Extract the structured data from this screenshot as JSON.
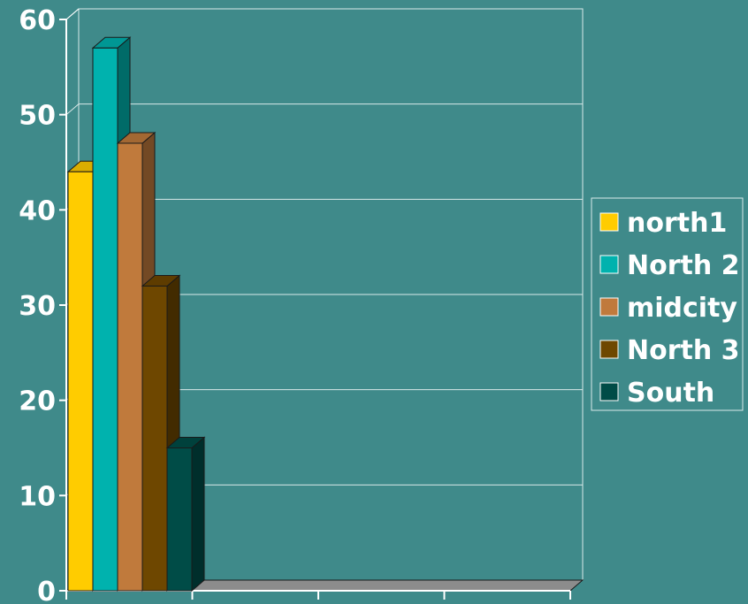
{
  "colors": {
    "background": "#3f8a8a",
    "grid": "#d9e9e9",
    "axis": "#ffffff",
    "floor": "#8c8c8c",
    "outline": "#1a1a1a"
  },
  "chart_data": {
    "type": "bar",
    "title": "",
    "xlabel": "",
    "ylabel": "",
    "ylim": [
      0,
      60
    ],
    "yticks": [
      0,
      10,
      20,
      30,
      40,
      50,
      60
    ],
    "grid": true,
    "legend_position": "right",
    "three_d": true,
    "categories": [
      ""
    ],
    "series": [
      {
        "name": "north1",
        "values": [
          44
        ],
        "color": "#ffcc00"
      },
      {
        "name": "North 2",
        "values": [
          57
        ],
        "color": "#00b2ae"
      },
      {
        "name": "midcity",
        "values": [
          47
        ],
        "color": "#c07a3c"
      },
      {
        "name": "North 3",
        "values": [
          32
        ],
        "color": "#6e4700"
      },
      {
        "name": "South",
        "values": [
          15
        ],
        "color": "#004c47"
      }
    ]
  }
}
